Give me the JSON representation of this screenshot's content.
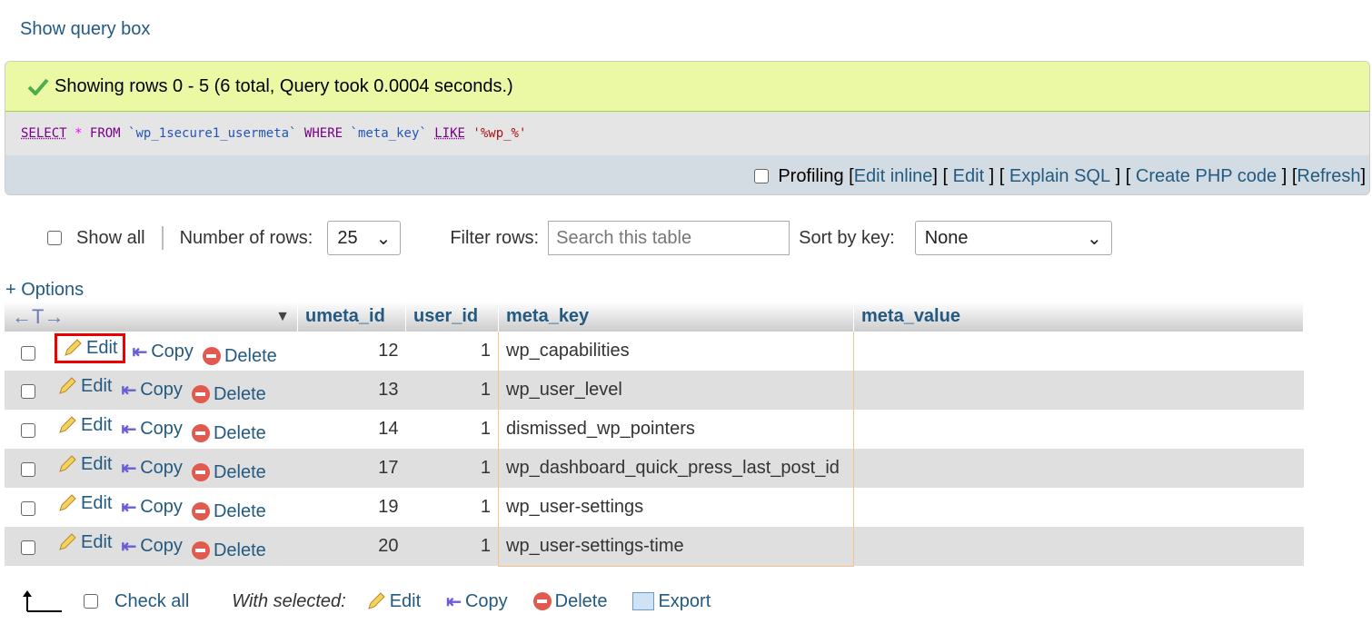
{
  "show_query_box": "Show query box",
  "success": {
    "message": "Showing rows 0 - 5 (6 total, Query took 0.0004 seconds.)"
  },
  "sql": {
    "select": "SELECT",
    "star": "*",
    "from": "FROM",
    "table": "`wp_1secure1_usermeta`",
    "where": "WHERE",
    "col": "`meta_key`",
    "like": "LIKE",
    "value": "'%wp_%'"
  },
  "profiling": {
    "label": "Profiling",
    "links": [
      "Edit inline",
      "Edit",
      "Explain SQL",
      "Create PHP code",
      "Refresh"
    ]
  },
  "controls": {
    "show_all": "Show all",
    "rows_label": "Number of rows:",
    "rows_value": "25",
    "filter_label": "Filter rows:",
    "filter_placeholder": "Search this table",
    "sort_label": "Sort by key:",
    "sort_value": "None"
  },
  "options": "+ Options",
  "columns": [
    "umeta_id",
    "user_id",
    "meta_key",
    "meta_value"
  ],
  "actions": {
    "edit": "Edit",
    "copy": "Copy",
    "delete": "Delete"
  },
  "rows": [
    {
      "umeta_id": "12",
      "user_id": "1",
      "meta_key": "wp_capabilities",
      "meta_value": ""
    },
    {
      "umeta_id": "13",
      "user_id": "1",
      "meta_key": "wp_user_level",
      "meta_value": ""
    },
    {
      "umeta_id": "14",
      "user_id": "1",
      "meta_key": "dismissed_wp_pointers",
      "meta_value": ""
    },
    {
      "umeta_id": "17",
      "user_id": "1",
      "meta_key": "wp_dashboard_quick_press_last_post_id",
      "meta_value": ""
    },
    {
      "umeta_id": "19",
      "user_id": "1",
      "meta_key": "wp_user-settings",
      "meta_value": ""
    },
    {
      "umeta_id": "20",
      "user_id": "1",
      "meta_key": "wp_user-settings-time",
      "meta_value": ""
    }
  ],
  "footer": {
    "check_all": "Check all",
    "with_selected": "With selected:",
    "edit": "Edit",
    "copy": "Copy",
    "delete": "Delete",
    "export": "Export"
  }
}
